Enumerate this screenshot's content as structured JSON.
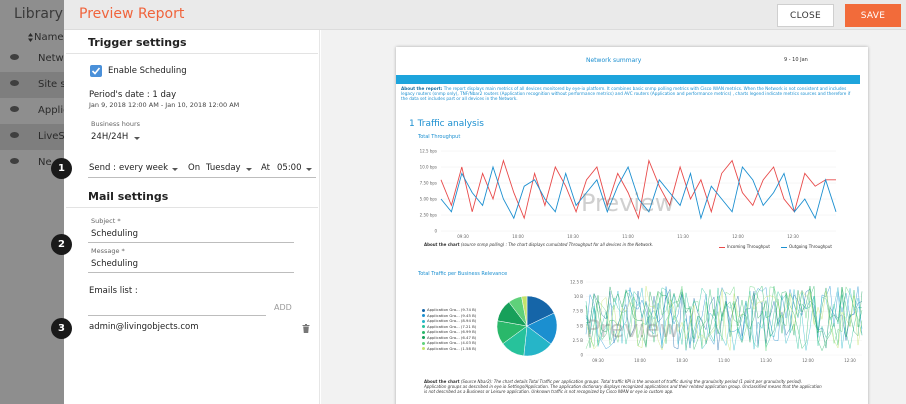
{
  "library": {
    "title": "Library",
    "column_header": "Name",
    "rows": [
      "Netw",
      "Site su",
      "Applic",
      "LiveSP",
      "Ne"
    ]
  },
  "topbar": {
    "title": "Preview Report",
    "close_label": "CLOSE",
    "save_label": "SAVE"
  },
  "trigger": {
    "title": "Trigger settings",
    "enable_label": "Enable Scheduling",
    "enabled": true,
    "period_label": "Period's date : 1 day",
    "period_range": "Jan 9, 2018 12:00 AM - Jan 10, 2018 12:00 AM",
    "business_hours_label": "Business hours",
    "business_hours_value": "24H/24H",
    "send_label": "Send :",
    "send_value": "every week",
    "on_label": "On",
    "on_value": "Tuesday",
    "at_label": "At",
    "at_value": "05:00"
  },
  "mail": {
    "title": "Mail settings",
    "subject_label": "Subject *",
    "subject_value": "Scheduling",
    "message_label": "Message *",
    "message_value": "Scheduling",
    "emails_label": "Emails list :",
    "add_label": "ADD",
    "emails": [
      "admin@livingobjects.com"
    ]
  },
  "markers": [
    "1",
    "2",
    "3"
  ],
  "preview": {
    "header_title": "Network summary",
    "header_date": "9 - 10 Jan",
    "about_label": "About the report:",
    "about_text": "The report displays main metrics of all devices monitored by eye-io platform. It combines basic snmp polling metrics with Cisco IWAN metrics. When the Network is not consistent and includes legacy routers (snmp only), TNF/Nbar2 routers (Application recognition without performance metrics) and AVC routers (Application and performance metrics) , charts legend indicate metrics sources and therefore if the data set includes part or all devices in the Network.",
    "section_title": "1 Traffic analysis",
    "watermark": "Preview",
    "chart1": {
      "title": "Total Throughput",
      "about": "About the chart",
      "about_text": "(source snmp polling) : The chart displays cumulated Throughput for all devices in the Network."
    },
    "chart2": {
      "title": "Total Traffic per Business Relevance",
      "about": "About the chart",
      "about_text": "(Source Nbar2): The chart details Total Traffic per application groups. Total traffic KPI is the amount of traffic during the granularity period (1 point per granularity period). Application groups as described in eye.io Settings/Application. The application dictionary displays recognized applications and their related application group. Unclassified means that the application is not described as a Business or Leisure application. Unknown traffic is not recognized by Cisco IWAN or eye.io custom app."
    }
  },
  "chart_data": [
    {
      "type": "line",
      "title": "Total Throughput",
      "y_ticks": [
        "12.5 bps",
        "10.0 bps",
        "7.50 bps",
        "5.00 bps",
        "2.50 bps",
        "0"
      ],
      "x_ticks": [
        "09:30",
        "10:00",
        "10:30",
        "11:00",
        "11:30",
        "12:00",
        "12:30"
      ],
      "ylim": [
        0,
        12.5
      ],
      "series": [
        {
          "name": "Incoming Throughput",
          "color": "#e84a4a",
          "values": [
            8,
            4,
            10,
            3,
            9,
            5,
            11,
            6,
            2,
            9,
            4,
            10,
            7,
            3,
            8,
            10,
            4,
            9,
            6,
            2,
            11,
            7,
            4,
            10,
            5,
            8,
            3,
            9,
            11,
            6,
            4,
            8,
            10,
            5,
            3,
            9,
            7,
            8,
            8
          ]
        },
        {
          "name": "Outgoing Throughput",
          "color": "#1b8fd0",
          "values": [
            5,
            3,
            9,
            6,
            4,
            10,
            5,
            2,
            7,
            8,
            5,
            3,
            9,
            4,
            6,
            8,
            3,
            7,
            10,
            5,
            3,
            8,
            6,
            4,
            9,
            2,
            7,
            5,
            3,
            10,
            8,
            4,
            6,
            9,
            3,
            5,
            2,
            8,
            3
          ]
        }
      ]
    },
    {
      "type": "pie",
      "title": "Total Traffic per Business Relevance",
      "labels": [
        "Application Gro... (9.74 B)",
        "Application Gro... (9.45 B)",
        "Application Gro... (8.94 B)",
        "Application Gro... (7.21 B)",
        "Application Gro... (6.99 B)",
        "Application Gro... (6.47 B)",
        "Application Gro... (4.03 B)",
        "Application Gro... (1.58 B)"
      ],
      "values": [
        9.74,
        9.45,
        8.94,
        7.21,
        6.99,
        6.47,
        4.03,
        1.58
      ],
      "colors": [
        "#1565a8",
        "#1b8fd0",
        "#26b5c8",
        "#27c29b",
        "#2ab86a",
        "#17a05a",
        "#5fd17a",
        "#c4e36b"
      ]
    },
    {
      "type": "line",
      "y_ticks": [
        "12.5 B",
        "10 B",
        "7.5 B",
        "5 B",
        "2.5 B",
        "0"
      ],
      "x_ticks": [
        "09:30",
        "10:00",
        "10:30",
        "11:00",
        "11:30",
        "12:00",
        "12:30"
      ],
      "ylim": [
        0,
        12.5
      ]
    }
  ]
}
